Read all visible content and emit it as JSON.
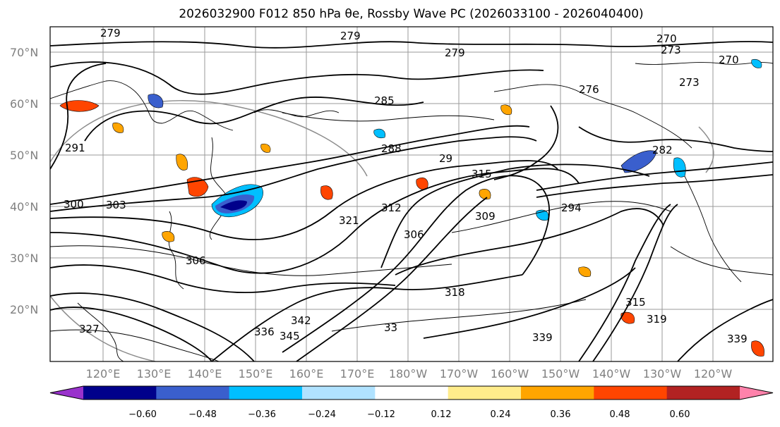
{
  "title": "2026032900 F012 850 hPa θe, Rossby Wave PC (2026033100 - 2026040400)",
  "map": {
    "lat_labels": [
      "70°N",
      "60°N",
      "50°N",
      "40°N",
      "30°N",
      "20°N"
    ],
    "lon_labels": [
      "120°E",
      "130°E",
      "140°E",
      "150°E",
      "160°E",
      "170°E",
      "180°W",
      "170°W",
      "160°W",
      "150°W",
      "140°W",
      "130°W",
      "120°W"
    ],
    "contour_labels": [
      "279",
      "279",
      "270",
      "273",
      "270",
      "273",
      "279",
      "276",
      "288",
      "285",
      "29",
      "291",
      "282",
      "300",
      "303",
      "321",
      "309",
      "294",
      "306",
      "315",
      "312",
      "306",
      "318",
      "315",
      "319",
      "339",
      "345",
      "342",
      "33",
      "339",
      "327",
      "336"
    ]
  },
  "colorbar": {
    "colors": [
      "#9932CC",
      "#00008B",
      "#3A5FCD",
      "#00BFFF",
      "#B0E2FF",
      "#FFFFFF",
      "#FFEC8B",
      "#FFA500",
      "#FF4500",
      "#B22222",
      "#FF82AB"
    ],
    "tick_labels": [
      "−0.60",
      "−0.48",
      "−0.36",
      "−0.24",
      "−0.12",
      "0.12",
      "0.24",
      "0.36",
      "0.48",
      "0.60"
    ]
  }
}
